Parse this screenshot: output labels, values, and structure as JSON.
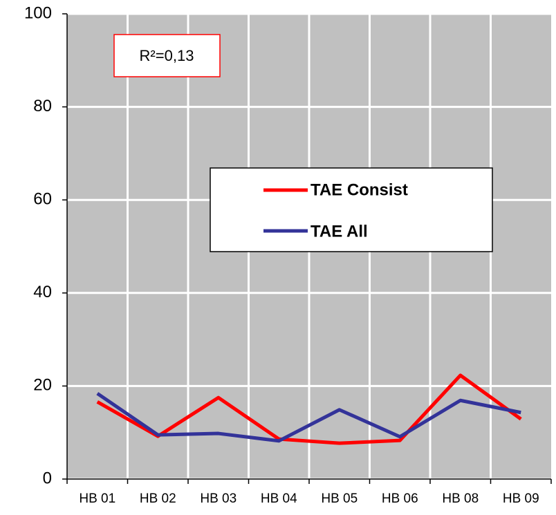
{
  "chart_data": {
    "type": "line",
    "annotation": "R²=0,13",
    "categories": [
      "HB 01",
      "HB 02",
      "HB 03",
      "HB 04",
      "HB 05",
      "HB 06",
      "HB 08",
      "HB 09"
    ],
    "series": [
      {
        "name": "TAE Consist",
        "color": "#ff0000",
        "values": [
          16.6,
          9.2,
          17.5,
          8.6,
          7.7,
          8.3,
          22.3,
          12.9
        ]
      },
      {
        "name": "TAE All",
        "color": "#333399",
        "values": [
          18.4,
          9.5,
          9.8,
          8.2,
          14.9,
          9.1,
          16.9,
          14.3
        ]
      }
    ],
    "ylim": [
      0,
      100
    ],
    "yticks": [
      0,
      20,
      40,
      60,
      80,
      100
    ],
    "grid": true
  }
}
